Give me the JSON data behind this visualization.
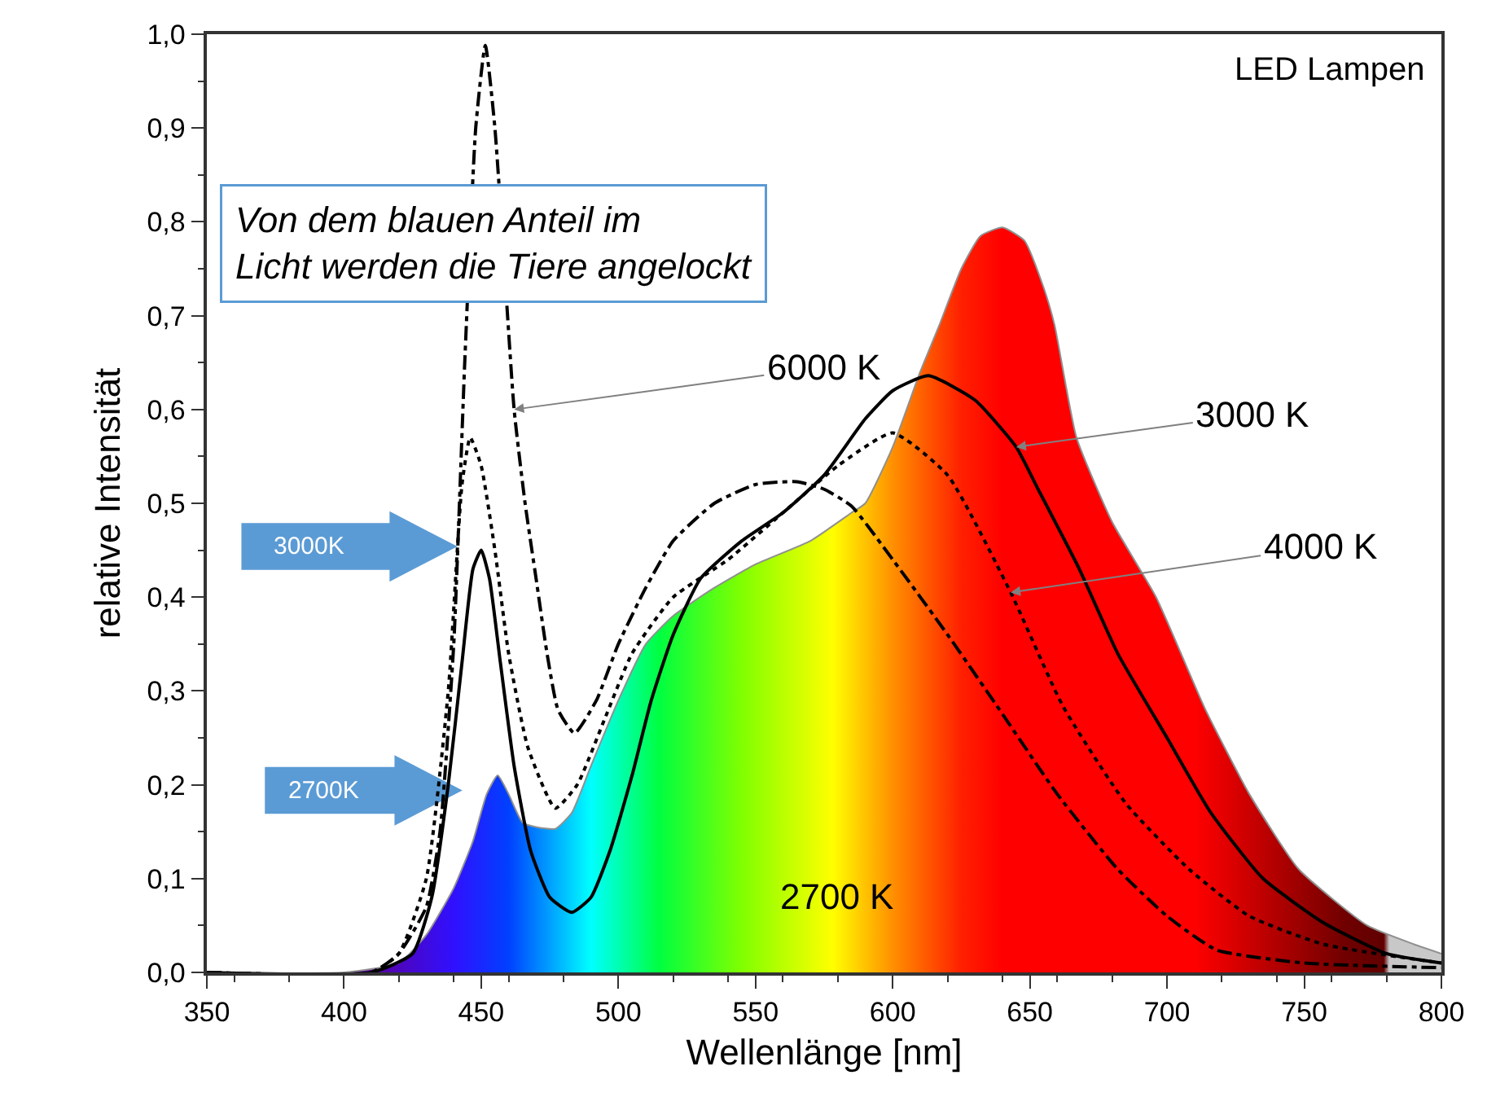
{
  "chart_data": {
    "type": "line",
    "title": "LED Lampen",
    "xlabel": "Wellenlänge [nm]",
    "ylabel": "relative Intensität",
    "xlim": [
      350,
      800
    ],
    "ylim": [
      0,
      1
    ],
    "xticks": [
      350,
      400,
      450,
      500,
      550,
      600,
      650,
      700,
      750,
      800
    ],
    "yticks": [
      {
        "value": 0,
        "label": "0,0"
      },
      {
        "value": 0.1,
        "label": "0,1"
      },
      {
        "value": 0.2,
        "label": "0,2"
      },
      {
        "value": 0.3,
        "label": "0,3"
      },
      {
        "value": 0.4,
        "label": "0,4"
      },
      {
        "value": 0.5,
        "label": "0,5"
      },
      {
        "value": 0.6,
        "label": "0,6"
      },
      {
        "value": 0.7,
        "label": "0,7"
      },
      {
        "value": 0.8,
        "label": "0,8"
      },
      {
        "value": 0.9,
        "label": "0,9"
      },
      {
        "value": 1.0,
        "label": "1,0"
      }
    ],
    "grid": false,
    "legend": false,
    "marker": "none",
    "series": [
      {
        "name": "2700 K",
        "type": "area",
        "color": "#ff0000",
        "x": [
          350,
          400,
          420,
          430,
          440,
          447,
          452,
          456,
          460,
          465,
          470,
          477,
          483,
          490,
          500,
          510,
          520,
          535,
          550,
          570,
          585,
          590,
          600,
          610,
          617,
          625,
          632,
          640,
          648,
          655,
          659,
          667,
          680,
          696,
          714,
          730,
          748,
          773,
          790,
          800
        ],
        "values": [
          0,
          0,
          0.01,
          0.04,
          0.09,
          0.14,
          0.19,
          0.21,
          0.19,
          0.16,
          0.155,
          0.153,
          0.17,
          0.22,
          0.29,
          0.35,
          0.38,
          0.41,
          0.435,
          0.46,
          0.49,
          0.5,
          0.56,
          0.64,
          0.69,
          0.75,
          0.785,
          0.794,
          0.78,
          0.73,
          0.69,
          0.57,
          0.48,
          0.4,
          0.28,
          0.19,
          0.11,
          0.05,
          0.03,
          0.02
        ]
      },
      {
        "color": "#000000",
        "line_style": "solid",
        "x": [
          350,
          410,
          425,
          432,
          438,
          443,
          447,
          450,
          453,
          457,
          462,
          468,
          475,
          483,
          490,
          497,
          505,
          512,
          520,
          530,
          545,
          560,
          575,
          590,
          600,
          613,
          630,
          645,
          653,
          668,
          682,
          700,
          716,
          735,
          757,
          780,
          800
        ],
        "values": [
          0,
          0,
          0.02,
          0.08,
          0.2,
          0.33,
          0.43,
          0.45,
          0.42,
          0.33,
          0.22,
          0.13,
          0.08,
          0.064,
          0.08,
          0.13,
          0.21,
          0.29,
          0.36,
          0.42,
          0.46,
          0.49,
          0.53,
          0.59,
          0.62,
          0.636,
          0.61,
          0.56,
          0.515,
          0.43,
          0.34,
          0.25,
          0.17,
          0.1,
          0.053,
          0.02,
          0.01
        ]
      },
      {
        "color": "#000000",
        "line_style": "dotted",
        "x": [
          350,
          410,
          420,
          430,
          438,
          443,
          446,
          450,
          455,
          460,
          467,
          477,
          485,
          495,
          505,
          520,
          540,
          560,
          580,
          600,
          620,
          643,
          662,
          685,
          708,
          730,
          757,
          800
        ],
        "values": [
          0,
          0,
          0.02,
          0.1,
          0.3,
          0.52,
          0.57,
          0.54,
          0.45,
          0.34,
          0.24,
          0.175,
          0.2,
          0.27,
          0.34,
          0.4,
          0.44,
          0.49,
          0.54,
          0.575,
          0.53,
          0.405,
          0.284,
          0.18,
          0.11,
          0.06,
          0.03,
          0.01
        ]
      },
      {
        "color": "#000000",
        "line_style": "dashed",
        "x": [
          350,
          410,
          420,
          430,
          435,
          440,
          444,
          448,
          451.5,
          455,
          458,
          462,
          466,
          470,
          474,
          478,
          484,
          492,
          500,
          510,
          520,
          535,
          550,
          565,
          575,
          585,
          600,
          620,
          638,
          660,
          682,
          700,
          718,
          750,
          800
        ],
        "values": [
          0,
          0,
          0.02,
          0.07,
          0.15,
          0.35,
          0.65,
          0.9,
          0.988,
          0.9,
          null,
          0.6,
          0.5,
          0.42,
          0.34,
          0.28,
          0.255,
          0.29,
          0.35,
          0.41,
          0.46,
          0.5,
          0.52,
          0.523,
          0.515,
          0.497,
          0.44,
          0.36,
          0.284,
          0.19,
          0.11,
          0.06,
          0.024,
          0.01,
          0.005
        ]
      }
    ],
    "annotations": [
      "Von dem blauen Anteil im\nLicht werden die Tiere angelockt",
      "3000K",
      "2700K",
      {
        "text": "6000 K",
        "x": 462,
        "y": 0.6
      },
      {
        "text": "3000 K",
        "x": 645,
        "y": 0.56
      },
      {
        "text": "4000 K",
        "x": 643,
        "y": 0.405
      }
    ]
  }
}
